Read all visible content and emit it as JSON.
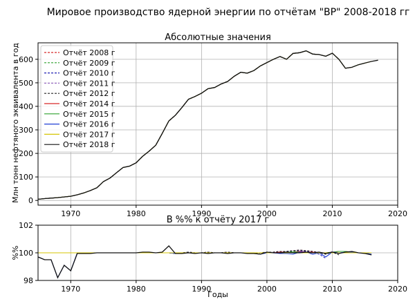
{
  "figure": {
    "title": "Мировое производство ядерной энергии по отчётам \"BP\" 2008-2018 гг"
  },
  "chart_data": [
    {
      "type": "line",
      "title": "Абсолютные значения",
      "xlabel": "",
      "ylabel": "Млн тонн нефтяного эквивалента в год",
      "xlim": [
        1965,
        2020
      ],
      "ylim": [
        -20,
        670
      ],
      "xticks": [
        1970,
        1980,
        1990,
        2000,
        2010,
        2020
      ],
      "yticks": [
        0,
        100,
        200,
        300,
        400,
        500,
        600
      ],
      "grid": true,
      "legend_position": "upper-left",
      "x": [
        1965,
        1966,
        1967,
        1968,
        1969,
        1970,
        1971,
        1972,
        1973,
        1974,
        1975,
        1976,
        1977,
        1978,
        1979,
        1980,
        1981,
        1982,
        1983,
        1984,
        1985,
        1986,
        1987,
        1988,
        1989,
        1990,
        1991,
        1992,
        1993,
        1994,
        1995,
        1996,
        1997,
        1998,
        1999,
        2000,
        2001,
        2002,
        2003,
        2004,
        2005,
        2006,
        2007,
        2008,
        2009,
        2010,
        2011,
        2012,
        2013,
        2014,
        2015,
        2016,
        2017
      ],
      "series": [
        {
          "name": "Отчёт 2008 г",
          "color": "#d62728",
          "dash": "3,2",
          "x_end": 2007,
          "values_ref": "base"
        },
        {
          "name": "Отчёт 2009 г",
          "color": "#2ca02c",
          "dash": "3,2",
          "x_end": 2008,
          "values_ref": "base"
        },
        {
          "name": "Отчёт 2010 г",
          "color": "#1f1fb4",
          "dash": "3,2",
          "x_end": 2009,
          "values_ref": "base"
        },
        {
          "name": "Отчёт 2011 г",
          "color": "#9467bd",
          "dash": "3,2",
          "x_end": 2010,
          "values_ref": "base"
        },
        {
          "name": "Отчёт 2012 г",
          "color": "#222222",
          "dash": "3,2",
          "x_end": 2011,
          "values_ref": "base"
        },
        {
          "name": "Отчёт 2014 г",
          "color": "#d62728",
          "dash": "",
          "x_end": 2013,
          "values_ref": "base"
        },
        {
          "name": "Отчёт 2015 г",
          "color": "#2ca02c",
          "dash": "",
          "x_end": 2014,
          "values_ref": "base"
        },
        {
          "name": "Отчёт 2016 г",
          "color": "#1f3fd6",
          "dash": "",
          "x_end": 2015,
          "values_ref": "base"
        },
        {
          "name": "Отчёт 2017 г",
          "color": "#d4c400",
          "dash": "",
          "x_end": 2016,
          "values_ref": "base"
        },
        {
          "name": "Отчёт 2018 г",
          "color": "#111111",
          "dash": "",
          "x_end": 2017,
          "values_ref": "base"
        }
      ],
      "base_values": [
        5,
        8,
        10,
        12,
        15,
        18,
        24,
        32,
        42,
        54,
        80,
        95,
        118,
        140,
        146,
        160,
        188,
        210,
        235,
        285,
        338,
        362,
        395,
        430,
        442,
        456,
        475,
        480,
        495,
        506,
        528,
        545,
        541,
        552,
        572,
        586,
        600,
        612,
        600,
        625,
        628,
        636,
        622,
        620,
        613,
        626,
        600,
        562,
        566,
        577,
        584,
        591,
        596
      ]
    },
    {
      "type": "line",
      "title": "В %% к отчёту 2017 г",
      "xlabel": "Годы",
      "ylabel": "%%",
      "xlim": [
        1965,
        2020
      ],
      "ylim": [
        98,
        102
      ],
      "xticks": [
        1970,
        1980,
        1990,
        2000,
        2010,
        2020
      ],
      "yticks": [
        98,
        100,
        102
      ],
      "grid": true,
      "x": [
        1965,
        1966,
        1967,
        1968,
        1969,
        1970,
        1971,
        1972,
        1973,
        1974,
        1975,
        1976,
        1977,
        1978,
        1979,
        1980,
        1981,
        1982,
        1983,
        1984,
        1985,
        1986,
        1987,
        1988,
        1989,
        1990,
        1991,
        1992,
        1993,
        1994,
        1995,
        1996,
        1997,
        1998,
        1999,
        2000,
        2001,
        2002,
        2003,
        2004,
        2005,
        2006,
        2007,
        2008,
        2009,
        2010,
        2011,
        2012,
        2013,
        2014,
        2015,
        2016
      ],
      "series": [
        {
          "name": "Отчёт 2008 г",
          "color": "#d62728",
          "dash": "3,2",
          "values": [
            100,
            100,
            100,
            100,
            100,
            100,
            100,
            100,
            100,
            100,
            100,
            100,
            100,
            100,
            100,
            100,
            100,
            100,
            100,
            100,
            100,
            99.95,
            100,
            100.05,
            100,
            100,
            100.05,
            100,
            100,
            100.05,
            100,
            100,
            100,
            99.95,
            100,
            100.05,
            100.05,
            100.1,
            100.1,
            100.15,
            100.2,
            100.15,
            100.1,
            null,
            null,
            null,
            null,
            null,
            null,
            null,
            null,
            null
          ]
        },
        {
          "name": "Отчёт 2009 г",
          "color": "#2ca02c",
          "dash": "3,2",
          "values": [
            100,
            100,
            100,
            100,
            100,
            100,
            100,
            100,
            100,
            100,
            100,
            100,
            100,
            100,
            100,
            100,
            100,
            100,
            100,
            100,
            100,
            99.95,
            100,
            100.05,
            100,
            100,
            100.05,
            100,
            100,
            100.05,
            100,
            100,
            100,
            99.95,
            100,
            100.05,
            100.05,
            100.05,
            100.1,
            100.1,
            100.15,
            100.1,
            100.05,
            100.05,
            null,
            null,
            null,
            null,
            null,
            null,
            null,
            null
          ]
        },
        {
          "name": "Отчёт 2010 г",
          "color": "#1f1fb4",
          "dash": "3,2",
          "values": [
            100,
            100,
            100,
            100,
            100,
            100,
            100,
            100,
            100,
            100,
            100,
            100,
            100,
            100,
            100,
            100,
            100,
            100,
            100,
            100,
            100,
            99.95,
            100,
            100.05,
            100,
            100,
            100.05,
            100,
            100,
            100.05,
            100,
            100,
            100,
            99.95,
            100,
            100.05,
            100.05,
            100.1,
            100.1,
            100.15,
            100.15,
            100.1,
            100.05,
            99.9,
            99.6,
            null,
            null,
            null,
            null,
            null,
            null,
            null
          ]
        },
        {
          "name": "Отчёт 2011 г",
          "color": "#9467bd",
          "dash": "3,2",
          "values": [
            100,
            100,
            100,
            100,
            100,
            100,
            100,
            100,
            100,
            100,
            100,
            100,
            100,
            100,
            100,
            100,
            100,
            100,
            100,
            100,
            100,
            99.95,
            100,
            100.05,
            100,
            100,
            100.05,
            100,
            100,
            100.05,
            100,
            100,
            100,
            99.95,
            100,
            100.05,
            100.05,
            100.1,
            100.1,
            100.15,
            100.2,
            100.15,
            100.1,
            100.05,
            99.95,
            100.1,
            null,
            null,
            null,
            null,
            null,
            null
          ]
        },
        {
          "name": "Отчёт 2012 г",
          "color": "#222222",
          "dash": "3,2",
          "values": [
            100,
            100,
            100,
            100,
            100,
            100,
            100,
            100,
            100,
            100,
            100,
            100,
            100,
            100,
            100,
            100,
            100,
            100,
            100,
            100,
            100,
            99.95,
            100,
            100.05,
            100,
            100,
            100.05,
            100,
            100,
            100.05,
            100,
            100,
            100,
            99.95,
            100,
            100.05,
            100.05,
            100.1,
            100.1,
            100.15,
            100.2,
            100.15,
            100.1,
            100,
            99.9,
            100.05,
            99.85,
            null,
            null,
            null,
            null,
            null
          ]
        },
        {
          "name": "Отчёт 2014 г",
          "color": "#d62728",
          "dash": "",
          "values": [
            100,
            100,
            100,
            100,
            100,
            100,
            100,
            100,
            100,
            100,
            100,
            100,
            100,
            100,
            100,
            100,
            100,
            100,
            100,
            100,
            100,
            100,
            100,
            100,
            100,
            100,
            100,
            100,
            100,
            100,
            100,
            100,
            100,
            100,
            100,
            100,
            100,
            100.05,
            100.05,
            100.05,
            100.1,
            100.05,
            100.05,
            100,
            100,
            100.05,
            100.1,
            100.1,
            100.05,
            null,
            null,
            null
          ]
        },
        {
          "name": "Отчёт 2015 г",
          "color": "#2ca02c",
          "dash": "",
          "values": [
            100,
            100,
            100,
            100,
            100,
            100,
            100,
            100,
            100,
            100,
            100,
            100,
            100,
            100,
            100,
            100,
            100,
            100,
            100,
            100,
            100,
            100,
            100,
            100,
            100,
            100,
            100,
            100,
            100,
            100,
            100,
            100,
            100,
            100,
            100,
            100,
            100,
            100,
            100.05,
            100.05,
            100.05,
            100.05,
            100,
            100,
            100,
            100.05,
            100.1,
            100.1,
            100.05,
            100,
            null,
            null
          ]
        },
        {
          "name": "Отчёт 2016 г",
          "color": "#1f3fd6",
          "dash": "",
          "values": [
            99.7,
            99.5,
            99.5,
            98.2,
            99.1,
            98.7,
            100,
            100,
            100,
            100,
            100,
            100,
            100,
            100,
            100,
            100,
            100,
            100,
            100,
            100,
            100,
            99.95,
            100,
            100,
            100,
            100,
            100,
            100,
            100,
            100,
            100,
            100,
            100,
            99.95,
            99.9,
            100,
            100,
            99.95,
            99.95,
            99.9,
            100.05,
            100.05,
            99.9,
            100,
            99.7,
            100.05,
            100,
            100.05,
            100.05,
            100,
            100,
            99.9
          ]
        },
        {
          "name": "Отчёт 2017 г",
          "color": "#d4c400",
          "dash": "",
          "values": [
            100,
            100,
            100,
            100,
            100,
            100,
            100,
            100,
            100,
            100,
            100,
            100,
            100,
            100,
            100,
            100,
            100,
            100,
            100,
            100,
            100,
            100,
            100,
            100,
            100,
            100,
            100,
            100,
            100,
            100,
            100,
            100,
            100,
            100,
            100,
            100,
            100,
            100,
            100,
            100,
            100,
            100,
            100,
            100,
            100,
            100,
            100,
            100,
            100,
            100,
            100,
            100
          ]
        },
        {
          "name": "Отчёт 2018 г",
          "color": "#111111",
          "dash": "",
          "values": [
            99.7,
            99.5,
            99.5,
            98.2,
            99.1,
            98.7,
            99.95,
            99.95,
            99.95,
            100,
            100,
            100,
            100,
            100,
            100,
            100,
            100.05,
            100.05,
            100,
            100.05,
            100.5,
            99.95,
            99.95,
            100,
            99.95,
            100,
            99.95,
            100,
            100,
            99.95,
            100,
            100,
            99.95,
            99.95,
            99.9,
            100.05,
            100,
            100,
            100.05,
            100,
            100,
            100.05,
            100,
            100.05,
            99.95,
            100.05,
            99.95,
            100.05,
            100.1,
            100,
            99.95,
            99.85
          ]
        }
      ]
    }
  ]
}
